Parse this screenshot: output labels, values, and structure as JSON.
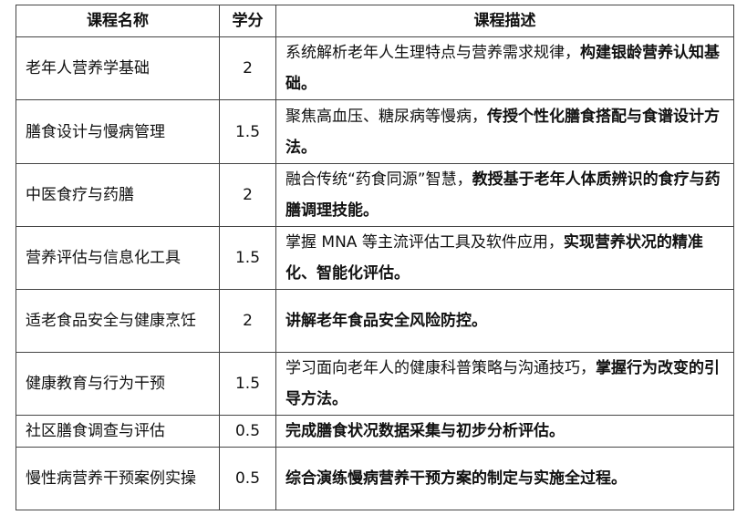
{
  "headers": {
    "name": "课程名称",
    "credit": "学分",
    "desc": "课程描述"
  },
  "rows": [
    {
      "name": "老年人营养学基础",
      "credit": "2",
      "desc_normal": "系统解析老年人生理特点与营养需求规律，",
      "desc_bold": "构建银龄营养认知基础。"
    },
    {
      "name": "膳食设计与慢病管理",
      "credit": "1.5",
      "desc_normal": "聚焦高血压、糖尿病等慢病，",
      "desc_bold": "传授个性化膳食搭配与食谱设计方法。"
    },
    {
      "name": "中医食疗与药膳",
      "credit": "2",
      "desc_normal": "融合传统“药食同源”智慧，",
      "desc_bold": "教授基于老年人体质辨识的食疗与药膳调理技能。"
    },
    {
      "name": "营养评估与信息化工具",
      "credit": "1.5",
      "desc_normal": "掌握 MNA 等主流评估工具及软件应用，",
      "desc_bold": "实现营养状况的精准化、智能化评估。"
    },
    {
      "name": "适老食品安全与健康烹饪",
      "credit": "2",
      "desc_normal": "",
      "desc_bold": "讲解老年食品安全风险防控。"
    },
    {
      "name": "健康教育与行为干预",
      "credit": "1.5",
      "desc_normal": "学习面向老年人的健康科普策略与沟通技巧，",
      "desc_bold": "掌握行为改变的引导方法。"
    },
    {
      "name": "社区膳食调查与评估",
      "credit": "0.5",
      "desc_normal": "",
      "desc_bold": "完成膳食状况数据采集与初步分析评估。"
    },
    {
      "name": "慢性病营养干预案例实操",
      "credit": "0.5",
      "desc_normal": "",
      "desc_bold": "综合演练慢病营养干预方案的制定与实施全过程。"
    }
  ]
}
